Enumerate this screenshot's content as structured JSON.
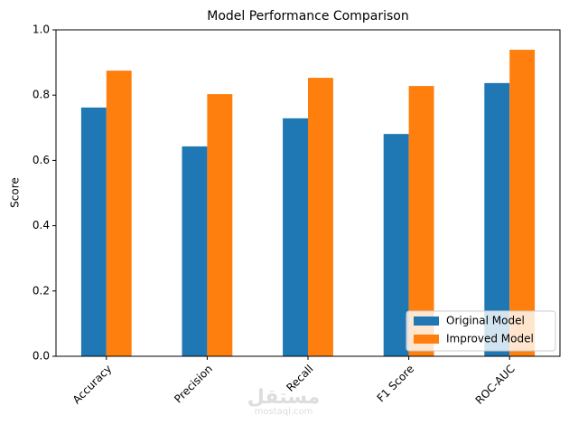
{
  "chart_data": {
    "type": "bar",
    "title": "Model Performance Comparison",
    "y_label": "Score",
    "categories": [
      "Accuracy",
      "Precision",
      "Recall",
      "F1 Score",
      "ROC-AUC"
    ],
    "series": [
      {
        "name": "Original Model",
        "color": "#1f77b4",
        "values": [
          0.762,
          0.643,
          0.729,
          0.681,
          0.837
        ]
      },
      {
        "name": "Improved Model",
        "color": "#ff7f0e",
        "values": [
          0.875,
          0.803,
          0.853,
          0.828,
          0.939
        ]
      }
    ],
    "ylim": [
      0,
      1
    ],
    "yticks": [
      {
        "value": 0,
        "label": "0.0"
      },
      0.2,
      0.4,
      0.6,
      0.8,
      {
        "value": 1,
        "label": "1.0"
      }
    ],
    "grid": false,
    "legend": "lower right",
    "watermark": "مستقل",
    "watermark_url": "mostaql.com"
  }
}
